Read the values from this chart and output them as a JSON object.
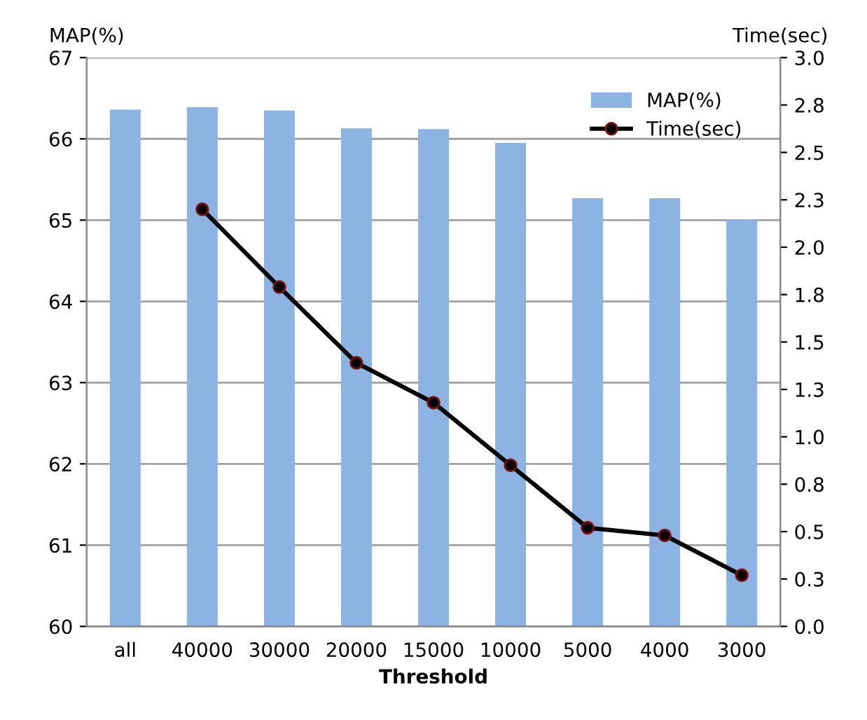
{
  "chart_data": {
    "type": "bar",
    "xlabel": "Threshold",
    "ylabel": "MAP(%)",
    "y2label": "Time(sec)",
    "categories": [
      "all",
      "40000",
      "30000",
      "20000",
      "15000",
      "10000",
      "5000",
      "4000",
      "3000"
    ],
    "series": [
      {
        "name": "MAP(%)",
        "color": "#8db3e2",
        "values": [
          66.36,
          66.39,
          66.35,
          66.13,
          66.12,
          65.95,
          65.27,
          65.27,
          65.01
        ]
      },
      {
        "name": "Time(sec)",
        "type": "line",
        "axis": "y2",
        "color": "#000000",
        "marker": "circle",
        "values": [
          null,
          2.2,
          1.79,
          1.39,
          1.18,
          0.85,
          0.52,
          0.48,
          0.27
        ]
      }
    ],
    "ylim": [
      60,
      67
    ],
    "yticks": [
      60,
      61,
      62,
      63,
      64,
      65,
      66,
      67
    ],
    "y2lim": [
      0,
      3.0
    ],
    "y2ticks": [
      {
        "value": 0,
        "label": "0.0"
      },
      {
        "value": 0.25,
        "label": "0.3"
      },
      {
        "value": 0.5,
        "label": "0.5"
      },
      {
        "value": 0.75,
        "label": "0.8"
      },
      {
        "value": 1.0,
        "label": "1.0"
      },
      {
        "value": 1.25,
        "label": "1.3"
      },
      {
        "value": 1.5,
        "label": "1.5"
      },
      {
        "value": 1.75,
        "label": "1.8"
      },
      {
        "value": 2.0,
        "label": "2.0"
      },
      {
        "value": 2.25,
        "label": "2.3"
      },
      {
        "value": 2.5,
        "label": "2.5"
      },
      {
        "value": 2.75,
        "label": "2.8"
      },
      {
        "value": 3.0,
        "label": "3.0"
      }
    ],
    "grid": "y",
    "legend": "top right"
  }
}
